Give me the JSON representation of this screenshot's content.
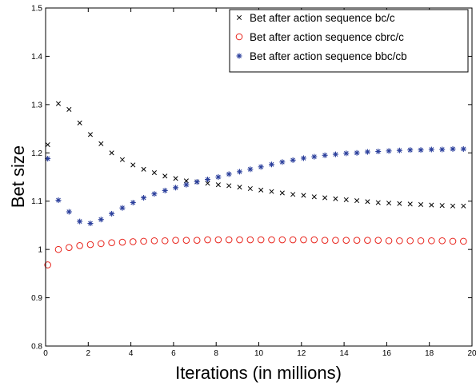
{
  "chart_data": {
    "type": "scatter",
    "title": "",
    "xlabel": "Iterations (in millions)",
    "ylabel": "Bet size",
    "xlim": [
      0,
      20
    ],
    "ylim": [
      0.8,
      1.5
    ],
    "x_ticks": [
      "0",
      "2",
      "4",
      "6",
      "8",
      "10",
      "12",
      "14",
      "16",
      "18",
      "20"
    ],
    "y_ticks": [
      "0.8",
      "0.9",
      "1",
      "1.1",
      "1.2",
      "1.3",
      "1.4",
      "1.5"
    ],
    "grid": false,
    "legend_position": "top-right",
    "series": [
      {
        "name": "Bet after action sequence bc/c",
        "marker": "x",
        "color": "#000000",
        "x": [
          0.1,
          0.6,
          1.1,
          1.6,
          2.1,
          2.6,
          3.1,
          3.6,
          4.1,
          4.6,
          5.1,
          5.6,
          6.1,
          6.6,
          7.1,
          7.6,
          8.1,
          8.6,
          9.1,
          9.6,
          10.1,
          10.6,
          11.1,
          11.6,
          12.1,
          12.6,
          13.1,
          13.6,
          14.1,
          14.6,
          15.1,
          15.6,
          16.1,
          16.6,
          17.1,
          17.6,
          18.1,
          18.6,
          19.1,
          19.6
        ],
        "y": [
          1.217,
          1.302,
          1.29,
          1.262,
          1.238,
          1.219,
          1.2,
          1.186,
          1.175,
          1.166,
          1.159,
          1.152,
          1.147,
          1.142,
          1.14,
          1.137,
          1.134,
          1.132,
          1.129,
          1.126,
          1.123,
          1.12,
          1.117,
          1.114,
          1.112,
          1.109,
          1.107,
          1.105,
          1.103,
          1.101,
          1.099,
          1.097,
          1.096,
          1.095,
          1.094,
          1.093,
          1.092,
          1.091,
          1.09,
          1.09
        ]
      },
      {
        "name": "Bet after action sequence cbrc/c",
        "marker": "o",
        "color": "#e8241c",
        "x": [
          0.1,
          0.6,
          1.1,
          1.6,
          2.1,
          2.6,
          3.1,
          3.6,
          4.1,
          4.6,
          5.1,
          5.6,
          6.1,
          6.6,
          7.1,
          7.6,
          8.1,
          8.6,
          9.1,
          9.6,
          10.1,
          10.6,
          11.1,
          11.6,
          12.1,
          12.6,
          13.1,
          13.6,
          14.1,
          14.6,
          15.1,
          15.6,
          16.1,
          16.6,
          17.1,
          17.6,
          18.1,
          18.6,
          19.1,
          19.6
        ],
        "y": [
          0.968,
          1.0,
          1.004,
          1.008,
          1.01,
          1.012,
          1.014,
          1.015,
          1.016,
          1.017,
          1.018,
          1.018,
          1.019,
          1.019,
          1.019,
          1.02,
          1.02,
          1.02,
          1.02,
          1.02,
          1.02,
          1.02,
          1.02,
          1.02,
          1.02,
          1.02,
          1.019,
          1.019,
          1.019,
          1.019,
          1.019,
          1.019,
          1.018,
          1.018,
          1.018,
          1.018,
          1.018,
          1.018,
          1.017,
          1.017
        ]
      },
      {
        "name": "Bet after action sequence bbc/cb",
        "marker": "*",
        "color": "#2b3f9c",
        "x": [
          0.1,
          0.6,
          1.1,
          1.6,
          2.1,
          2.6,
          3.1,
          3.6,
          4.1,
          4.6,
          5.1,
          5.6,
          6.1,
          6.6,
          7.1,
          7.6,
          8.1,
          8.6,
          9.1,
          9.6,
          10.1,
          10.6,
          11.1,
          11.6,
          12.1,
          12.6,
          13.1,
          13.6,
          14.1,
          14.6,
          15.1,
          15.6,
          16.1,
          16.6,
          17.1,
          17.6,
          18.1,
          18.6,
          19.1,
          19.6
        ],
        "y": [
          1.188,
          1.102,
          1.078,
          1.058,
          1.054,
          1.062,
          1.074,
          1.086,
          1.097,
          1.107,
          1.115,
          1.122,
          1.128,
          1.134,
          1.14,
          1.145,
          1.15,
          1.156,
          1.161,
          1.166,
          1.171,
          1.176,
          1.181,
          1.185,
          1.189,
          1.192,
          1.195,
          1.197,
          1.199,
          1.2,
          1.202,
          1.203,
          1.204,
          1.205,
          1.206,
          1.206,
          1.207,
          1.207,
          1.208,
          1.208
        ]
      }
    ]
  }
}
